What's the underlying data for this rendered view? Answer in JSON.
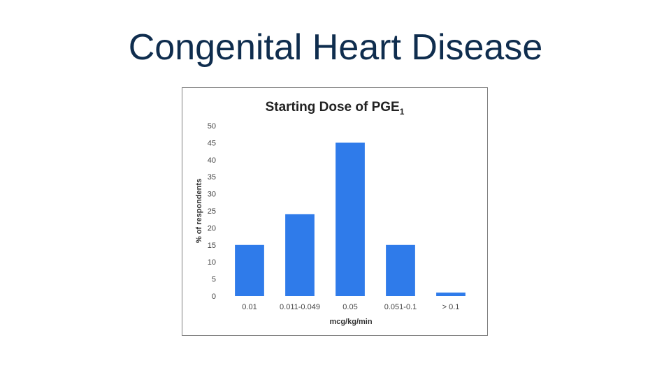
{
  "slide": {
    "title": "Congenital Heart Disease"
  },
  "chart_data": {
    "type": "bar",
    "title": "Starting Dose of PGE",
    "title_subscript": "1",
    "categories": [
      "0.01",
      "0.011-0.049",
      "0.05",
      "0.051-0.1",
      "> 0.1"
    ],
    "values": [
      15,
      24,
      45,
      15,
      1
    ],
    "xlabel": "mcg/kg/min",
    "ylabel": "% of respondents",
    "ylim": [
      0,
      50
    ],
    "yticks": [
      0,
      5,
      10,
      15,
      20,
      25,
      30,
      35,
      40,
      45,
      50
    ],
    "grid": false,
    "legend": "none",
    "bar_color": "#2f7bea"
  }
}
